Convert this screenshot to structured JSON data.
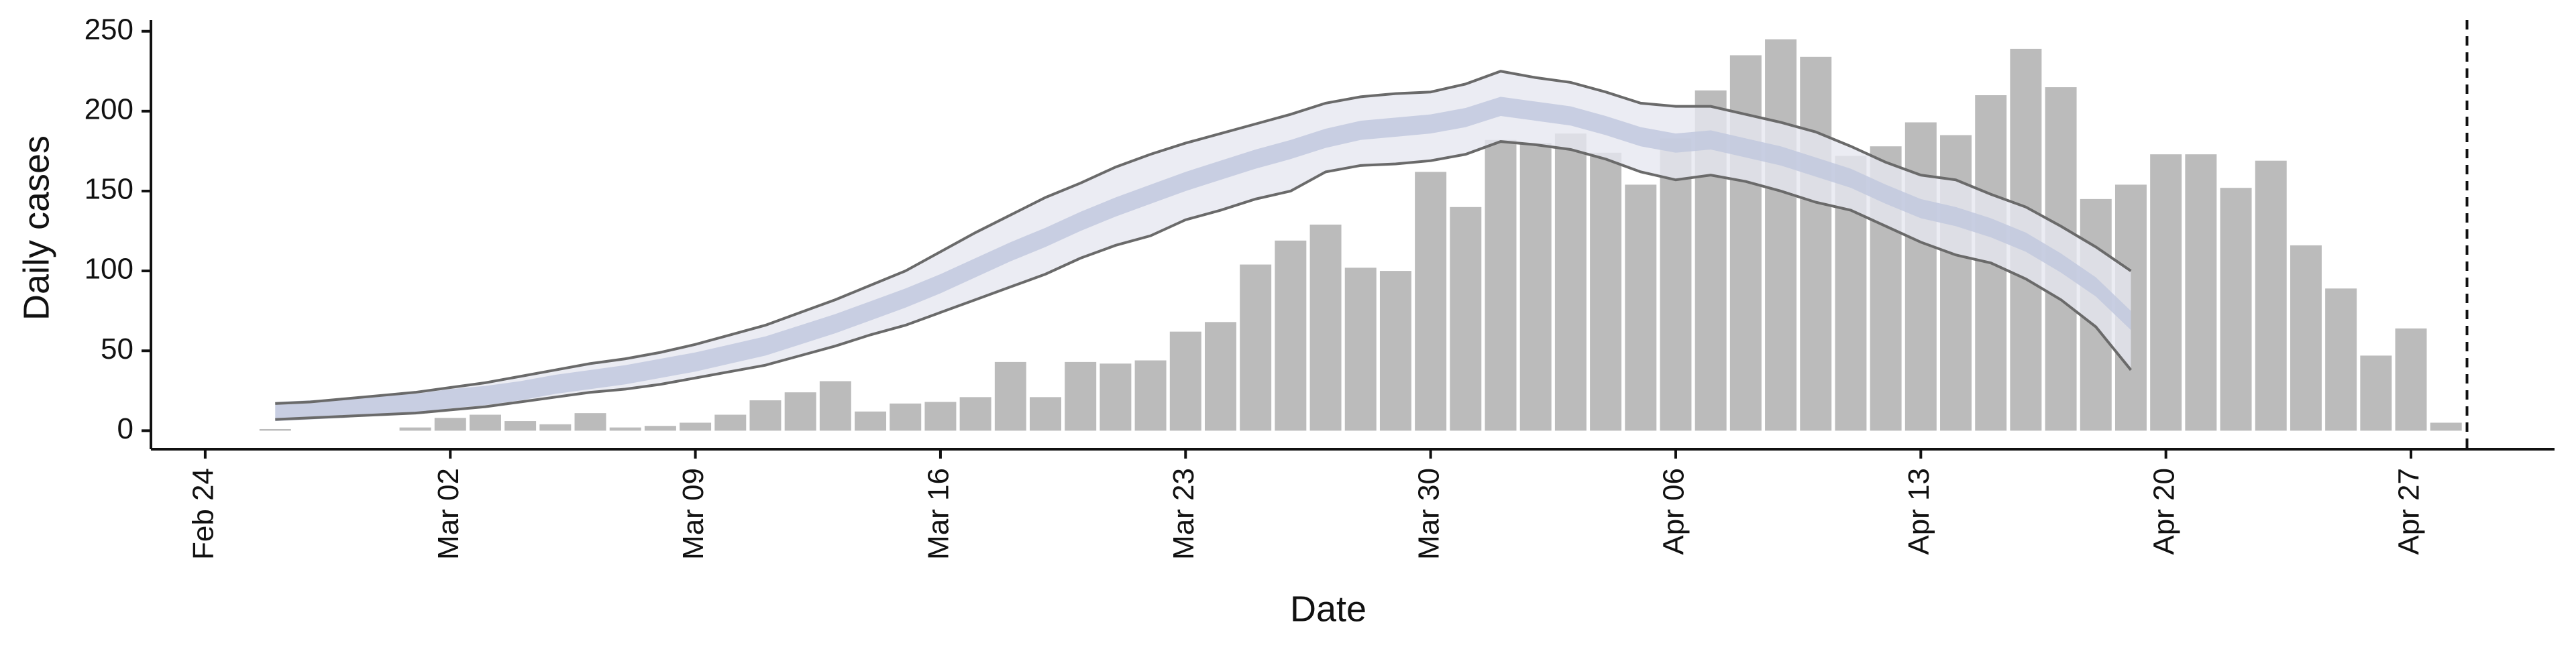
{
  "chart_data": {
    "type": "bar",
    "x_label": "Date",
    "y_label": "Daily cases",
    "bars": {
      "color": "#bbbbbb",
      "x": [
        2,
        6,
        7,
        8,
        9,
        10,
        11,
        12,
        13,
        14,
        15,
        16,
        17,
        18,
        19,
        20,
        21,
        22,
        23,
        24,
        25,
        26,
        27,
        28,
        29,
        30,
        31,
        32,
        33,
        34,
        35,
        36,
        37,
        38,
        39,
        40,
        41,
        42,
        43,
        44,
        45,
        46,
        47,
        48,
        49,
        50,
        51,
        52,
        53,
        54,
        55,
        56,
        57,
        58,
        59,
        60,
        61,
        62,
        63,
        64
      ],
      "values": [
        1,
        2,
        8,
        10,
        6,
        4,
        11,
        2,
        3,
        5,
        10,
        19,
        24,
        31,
        12,
        17,
        18,
        21,
        43,
        21,
        43,
        42,
        44,
        62,
        68,
        104,
        119,
        129,
        102,
        100,
        162,
        140,
        182,
        180,
        186,
        174,
        154,
        183,
        213,
        235,
        245,
        234,
        172,
        178,
        193,
        185,
        210,
        239,
        215,
        145,
        154,
        173,
        173,
        152,
        169,
        116,
        89,
        47,
        64,
        5
      ]
    },
    "model": {
      "outer_color": "#e6e7f0",
      "inner_color": "#c2c9de",
      "line_color": "#6a6a6a",
      "x": [
        2,
        3,
        4,
        5,
        6,
        7,
        8,
        9,
        10,
        11,
        12,
        13,
        14,
        15,
        16,
        17,
        18,
        19,
        20,
        21,
        22,
        23,
        24,
        25,
        26,
        27,
        28,
        29,
        30,
        31,
        32,
        33,
        34,
        35,
        36,
        37,
        38,
        39,
        40,
        41,
        42,
        43,
        44,
        45,
        46,
        47,
        48,
        49,
        50,
        51,
        52,
        53,
        54,
        55
      ],
      "lower_95": [
        7,
        8,
        9,
        10,
        11,
        13,
        15,
        18,
        21,
        24,
        26,
        29,
        33,
        37,
        41,
        47,
        53,
        60,
        66,
        74,
        82,
        90,
        98,
        108,
        116,
        122,
        132,
        138,
        145,
        150,
        162,
        166,
        167,
        169,
        173,
        181,
        179,
        176,
        170,
        162,
        157,
        160,
        156,
        150,
        143,
        138,
        128,
        118,
        110,
        105,
        95,
        82,
        65,
        38
      ],
      "upper_95": [
        17,
        18,
        20,
        22,
        24,
        27,
        30,
        34,
        38,
        42,
        45,
        49,
        54,
        60,
        66,
        74,
        82,
        91,
        100,
        112,
        124,
        135,
        146,
        155,
        165,
        173,
        180,
        186,
        192,
        198,
        205,
        209,
        211,
        212,
        217,
        225,
        221,
        218,
        212,
        205,
        203,
        203,
        198,
        193,
        187,
        178,
        168,
        160,
        157,
        148,
        140,
        128,
        115,
        100
      ],
      "lower_50": [
        6,
        7,
        8,
        10,
        11,
        14,
        16,
        19,
        23,
        26,
        29,
        33,
        37,
        42,
        47,
        54,
        61,
        69,
        77,
        86,
        96,
        106,
        115,
        125,
        134,
        142,
        150,
        157,
        164,
        170,
        177,
        182,
        184,
        186,
        190,
        197,
        194,
        191,
        185,
        178,
        174,
        176,
        171,
        166,
        159,
        152,
        142,
        133,
        128,
        121,
        112,
        99,
        84,
        63
      ],
      "upper_50": [
        18,
        19,
        20,
        22,
        23,
        26,
        28,
        31,
        35,
        38,
        41,
        45,
        49,
        54,
        59,
        66,
        73,
        81,
        89,
        98,
        108,
        118,
        127,
        137,
        146,
        154,
        162,
        169,
        176,
        182,
        189,
        194,
        196,
        198,
        202,
        209,
        206,
        203,
        197,
        190,
        186,
        188,
        183,
        178,
        171,
        164,
        154,
        145,
        140,
        133,
        124,
        111,
        96,
        75
      ]
    },
    "vline": 64.6,
    "xlim": [
      -1.55,
      67.1
    ],
    "xticks": [
      {
        "value": 0,
        "label": "Feb 24"
      },
      {
        "value": 7,
        "label": "Mar 02"
      },
      {
        "value": 14,
        "label": "Mar 09"
      },
      {
        "value": 21,
        "label": "Mar 16"
      },
      {
        "value": 28,
        "label": "Mar 23"
      },
      {
        "value": 35,
        "label": "Mar 30"
      },
      {
        "value": 42,
        "label": "Apr 06"
      },
      {
        "value": 49,
        "label": "Apr 13"
      },
      {
        "value": 56,
        "label": "Apr 20"
      },
      {
        "value": 63,
        "label": "Apr 27"
      }
    ],
    "ylim": [
      -11.6,
      257
    ],
    "yticks": [
      0,
      50,
      100,
      150,
      200,
      250
    ]
  }
}
